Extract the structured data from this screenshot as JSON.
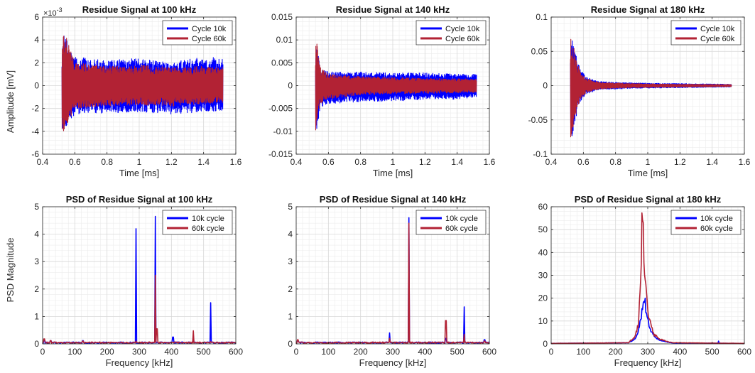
{
  "figure": {
    "ylabel_top": "Amplitude [mV]",
    "ylabel_bottom": "PSD Magnitude"
  },
  "colors": {
    "series_1": "#0000ff",
    "series_2": "#b22234"
  },
  "chart_data": [
    {
      "type": "line",
      "title": "Residue Signal at 100 kHz",
      "xlabel": "Time [ms]",
      "ylabel": "Amplitude [mV]",
      "xlim": [
        0.4,
        1.6
      ],
      "ylim": [
        -6,
        6
      ],
      "xticks": [
        0.4,
        0.6,
        0.8,
        1,
        1.2,
        1.4,
        1.6
      ],
      "xtick_labels": [
        "0.4",
        "0.6",
        "0.8",
        "1",
        "1.2",
        "1.4",
        "1.6"
      ],
      "yticks": [
        -6,
        -4,
        -2,
        0,
        2,
        4,
        6
      ],
      "ytick_labels": [
        "-6",
        "-4",
        "-2",
        "0",
        "2",
        "4",
        "6"
      ],
      "y_exponent": "×10",
      "y_exponent_power": "-3",
      "grid": true,
      "legend": "top-right",
      "series": [
        {
          "name": "Cycle 10k",
          "color": "#0000ff",
          "x_start": 0.52,
          "x_end": 1.52,
          "envelope": {
            "x": [
              0.52,
              0.53,
              0.6,
              0.8,
              1.0,
              1.2,
              1.4,
              1.52
            ],
            "upper": [
              3.0,
              4.5,
              2.5,
              2.2,
              2.4,
              2.0,
              2.6,
              2.4
            ],
            "lower": [
              -3.5,
              -4.0,
              -2.5,
              -2.4,
              -2.3,
              -2.5,
              -2.3,
              -2.4
            ]
          }
        },
        {
          "name": "Cycle 60k",
          "color": "#b22234",
          "x_start": 0.52,
          "x_end": 1.52,
          "envelope": {
            "x": [
              0.52,
              0.53,
              0.6,
              0.8,
              1.0,
              1.2,
              1.4,
              1.52
            ],
            "upper": [
              2.8,
              5.0,
              2.0,
              1.7,
              1.8,
              1.6,
              1.7,
              1.6
            ],
            "lower": [
              -3.8,
              -4.0,
              -2.0,
              -1.8,
              -1.7,
              -1.8,
              -1.6,
              -1.6
            ]
          }
        }
      ]
    },
    {
      "type": "line",
      "title": "Residue Signal at 140 kHz",
      "xlabel": "Time [ms]",
      "ylabel": "",
      "xlim": [
        0.4,
        1.6
      ],
      "ylim": [
        -0.015,
        0.015
      ],
      "xticks": [
        0.4,
        0.6,
        0.8,
        1,
        1.2,
        1.4,
        1.6
      ],
      "xtick_labels": [
        "0.4",
        "0.6",
        "0.8",
        "1",
        "1.2",
        "1.4",
        "1.6"
      ],
      "yticks": [
        -0.015,
        -0.01,
        -0.005,
        0,
        0.005,
        0.01,
        0.015
      ],
      "ytick_labels": [
        "-0.015",
        "-0.01",
        "-0.005",
        "0",
        "0.005",
        "0.01",
        "0.015"
      ],
      "grid": true,
      "legend": "top-right",
      "series": [
        {
          "name": "Cycle 10k",
          "color": "#0000ff",
          "x_start": 0.52,
          "x_end": 1.52,
          "envelope": {
            "x": [
              0.52,
              0.525,
              0.55,
              0.6,
              0.8,
              1.0,
              1.2,
              1.4,
              1.52
            ],
            "upper": [
              0.006,
              0.009,
              0.004,
              0.003,
              0.003,
              0.0028,
              0.0028,
              0.0025,
              0.0025
            ],
            "lower": [
              -0.009,
              -0.01,
              -0.005,
              -0.004,
              -0.0035,
              -0.0035,
              -0.003,
              -0.003,
              -0.0025
            ]
          }
        },
        {
          "name": "Cycle 60k",
          "color": "#b22234",
          "x_start": 0.52,
          "x_end": 1.52,
          "envelope": {
            "x": [
              0.52,
              0.525,
              0.55,
              0.6,
              0.8,
              1.0,
              1.2,
              1.4,
              1.52
            ],
            "upper": [
              0.008,
              0.0105,
              0.004,
              0.0025,
              0.002,
              0.0018,
              0.0016,
              0.0015,
              0.0015
            ],
            "lower": [
              -0.0105,
              -0.01,
              -0.004,
              -0.003,
              -0.002,
              -0.0018,
              -0.0017,
              -0.0016,
              -0.0015
            ]
          }
        }
      ]
    },
    {
      "type": "line",
      "title": "Residue Signal at 180 kHz",
      "xlabel": "Time [ms]",
      "ylabel": "",
      "xlim": [
        0.4,
        1.6
      ],
      "ylim": [
        -0.1,
        0.1
      ],
      "xticks": [
        0.4,
        0.6,
        0.8,
        1,
        1.2,
        1.4,
        1.6
      ],
      "xtick_labels": [
        "0.4",
        "0.6",
        "0.8",
        "1",
        "1.2",
        "1.4",
        "1.6"
      ],
      "yticks": [
        -0.1,
        -0.05,
        0,
        0.05,
        0.1
      ],
      "ytick_labels": [
        "-0.1",
        "-0.05",
        "0",
        "0.05",
        "0.1"
      ],
      "grid": true,
      "legend": "top-right",
      "series": [
        {
          "name": "Cycle 10k",
          "color": "#0000ff",
          "x_start": 0.52,
          "x_end": 1.52,
          "envelope": {
            "x": [
              0.52,
              0.525,
              0.55,
              0.58,
              0.62,
              0.7,
              0.9,
              1.2,
              1.52
            ],
            "upper": [
              0.06,
              0.075,
              0.05,
              0.025,
              0.012,
              0.006,
              0.004,
              0.003,
              0.002
            ],
            "lower": [
              -0.08,
              -0.085,
              -0.05,
              -0.025,
              -0.012,
              -0.006,
              -0.004,
              -0.003,
              -0.002
            ]
          }
        },
        {
          "name": "Cycle 60k",
          "color": "#b22234",
          "x_start": 0.52,
          "x_end": 1.52,
          "envelope": {
            "x": [
              0.52,
              0.525,
              0.55,
              0.58,
              0.62,
              0.7,
              0.9,
              1.2,
              1.52
            ],
            "upper": [
              0.07,
              0.077,
              0.045,
              0.02,
              0.01,
              0.005,
              0.003,
              0.002,
              0.0015
            ],
            "lower": [
              -0.085,
              -0.088,
              -0.045,
              -0.02,
              -0.01,
              -0.005,
              -0.003,
              -0.002,
              -0.0015
            ]
          }
        }
      ]
    },
    {
      "type": "line",
      "title": "PSD of Residue Signal at 100 kHz",
      "xlabel": "Frequency [kHz]",
      "ylabel": "PSD Magnitude",
      "xlim": [
        0,
        600
      ],
      "ylim": [
        0,
        5
      ],
      "xticks": [
        0,
        100,
        200,
        300,
        400,
        500,
        600
      ],
      "xtick_labels": [
        "0",
        "100",
        "200",
        "300",
        "400",
        "500",
        "600"
      ],
      "yticks": [
        0,
        1,
        2,
        3,
        4,
        5
      ],
      "ytick_labels": [
        "0",
        "1",
        "2",
        "3",
        "4",
        "5"
      ],
      "grid": true,
      "legend": "top-right",
      "series": [
        {
          "name": "10k cycle",
          "color": "#0000ff",
          "peaks": [
            [
              5,
              0.15
            ],
            [
              25,
              0.12
            ],
            [
              125,
              0.12
            ],
            [
              290,
              4.2
            ],
            [
              350,
              4.65
            ],
            [
              405,
              0.25
            ],
            [
              468,
              0.3
            ],
            [
              522,
              1.5
            ]
          ]
        },
        {
          "name": "60k cycle",
          "color": "#b22234",
          "peaks": [
            [
              5,
              0.18
            ],
            [
              25,
              0.12
            ],
            [
              125,
              0.1
            ],
            [
              290,
              0.1
            ],
            [
              350,
              2.5
            ],
            [
              355,
              0.55
            ],
            [
              468,
              0.48
            ],
            [
              522,
              0.08
            ]
          ]
        }
      ]
    },
    {
      "type": "line",
      "title": "PSD of Residue Signal at 140 kHz",
      "xlabel": "Frequency [kHz]",
      "ylabel": "",
      "xlim": [
        0,
        600
      ],
      "ylim": [
        0,
        5
      ],
      "xticks": [
        0,
        100,
        200,
        300,
        400,
        500,
        600
      ],
      "xtick_labels": [
        "0",
        "100",
        "200",
        "300",
        "400",
        "500",
        "600"
      ],
      "yticks": [
        0,
        1,
        2,
        3,
        4,
        5
      ],
      "ytick_labels": [
        "0",
        "1",
        "2",
        "3",
        "4",
        "5"
      ],
      "grid": true,
      "legend": "top-right",
      "series": [
        {
          "name": "10k cycle",
          "color": "#0000ff",
          "peaks": [
            [
              5,
              0.12
            ],
            [
              290,
              0.4
            ],
            [
              350,
              4.6
            ],
            [
              465,
              0.2
            ],
            [
              522,
              1.35
            ],
            [
              585,
              0.15
            ]
          ]
        },
        {
          "name": "60k cycle",
          "color": "#b22234",
          "peaks": [
            [
              5,
              0.15
            ],
            [
              290,
              0.2
            ],
            [
              350,
              4.4
            ],
            [
              465,
              0.85
            ],
            [
              522,
              0.35
            ],
            [
              585,
              0.1
            ]
          ]
        }
      ]
    },
    {
      "type": "line",
      "title": "PSD of Residue Signal at 180 kHz",
      "xlabel": "Frequency [kHz]",
      "ylabel": "",
      "xlim": [
        0,
        600
      ],
      "ylim": [
        0,
        60
      ],
      "xticks": [
        0,
        100,
        200,
        300,
        400,
        500,
        600
      ],
      "xtick_labels": [
        "0",
        "100",
        "200",
        "300",
        "400",
        "500",
        "600"
      ],
      "yticks": [
        0,
        10,
        20,
        30,
        40,
        50,
        60
      ],
      "ytick_labels": [
        "0",
        "10",
        "20",
        "30",
        "40",
        "50",
        "60"
      ],
      "grid": true,
      "legend": "top-right",
      "series": [
        {
          "name": "10k cycle",
          "color": "#0000ff",
          "shape": {
            "x": [
              0,
              240,
              260,
              270,
              280,
              285,
              290,
              295,
              300,
              310,
              320,
              340,
              360,
              380,
              600
            ],
            "y": [
              0.2,
              0.5,
              2,
              5,
              12,
              19,
              20,
              14,
              10,
              6,
              3,
              1.5,
              0.8,
              0.4,
              0.2
            ]
          },
          "spikes": [
            [
              520,
              1.2
            ]
          ]
        },
        {
          "name": "60k cycle",
          "color": "#b22234",
          "shape": {
            "x": [
              0,
              240,
              260,
              270,
              278,
              283,
              287,
              290,
              295,
              300,
              310,
              320,
              340,
              360,
              380,
              600
            ],
            "y": [
              0.2,
              0.5,
              3,
              8,
              25,
              58,
              45,
              34,
              22,
              14,
              8,
              4,
              2,
              1,
              0.5,
              0.2
            ]
          },
          "spikes": []
        }
      ]
    }
  ]
}
